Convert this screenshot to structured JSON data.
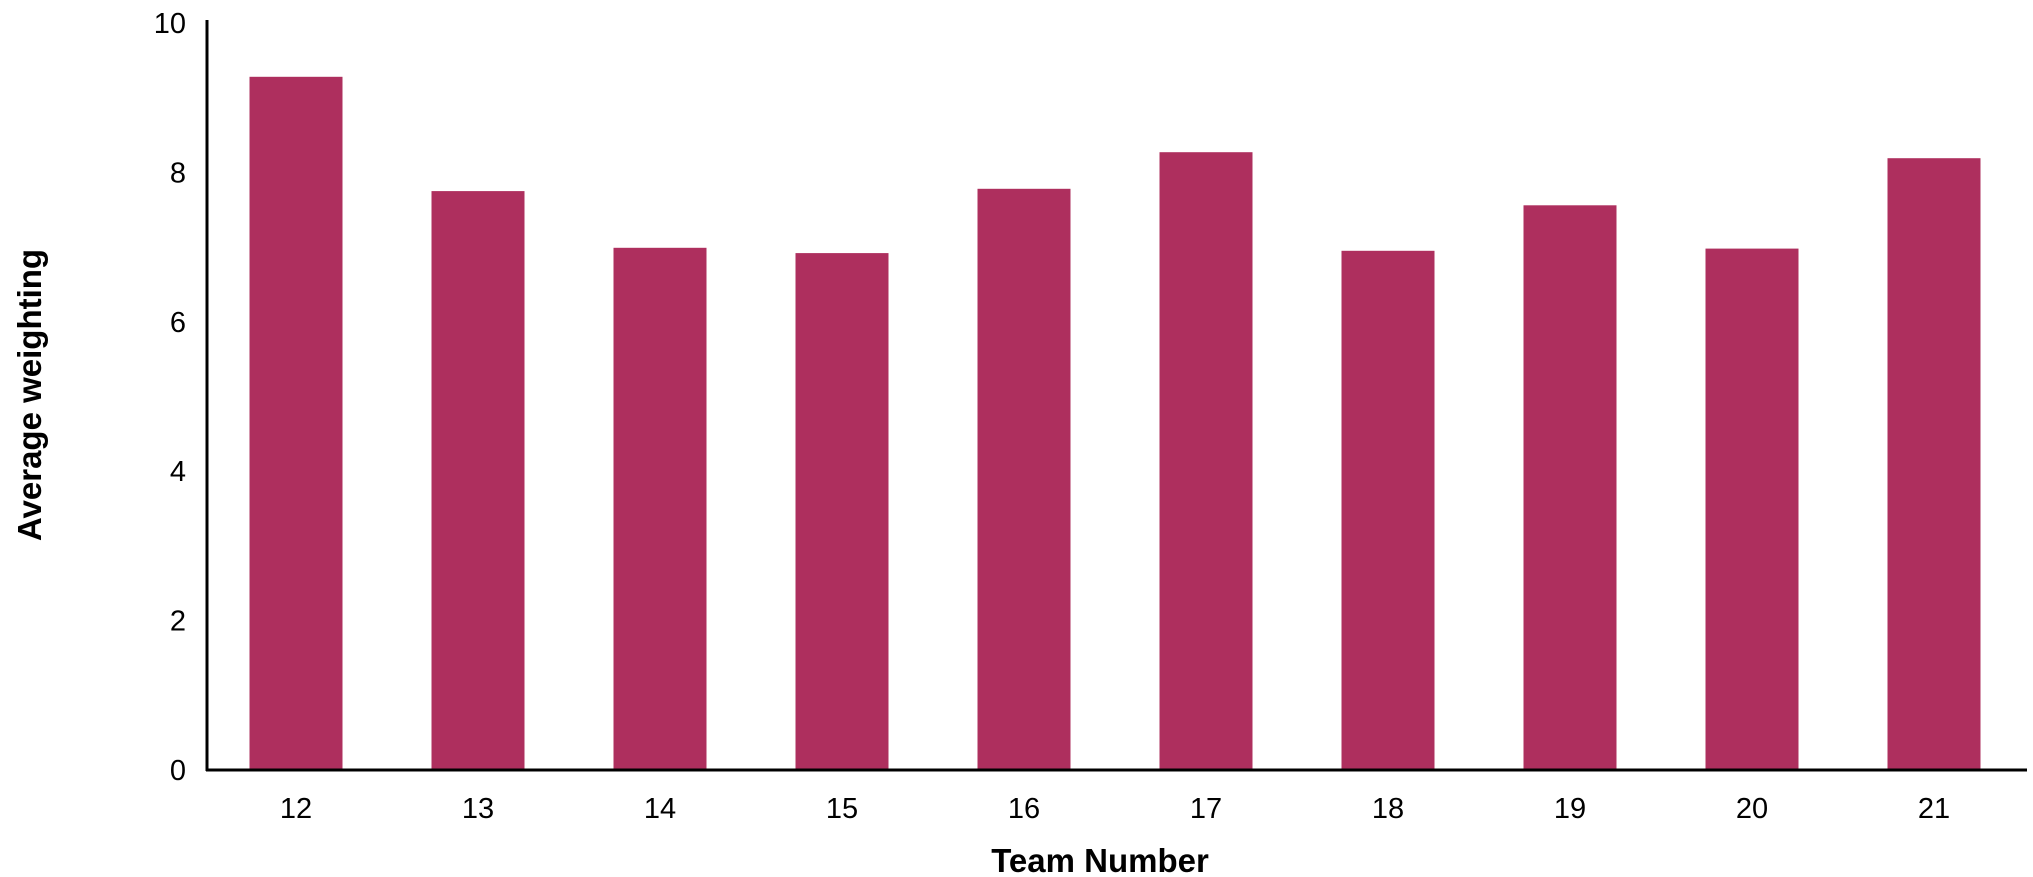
{
  "chart_data": {
    "type": "bar",
    "title": "",
    "xlabel": "Team Number",
    "ylabel": "Average weighting",
    "categories": [
      "12",
      "13",
      "14",
      "15",
      "16",
      "17",
      "18",
      "19",
      "20",
      "21"
    ],
    "values": [
      9.28,
      7.75,
      6.99,
      6.92,
      7.78,
      8.27,
      6.95,
      7.56,
      6.98,
      8.19
    ],
    "ylim": [
      0,
      10
    ],
    "yticks": [
      "0",
      "2",
      "4",
      "6",
      "8",
      "10"
    ],
    "grid": false,
    "legend": "none",
    "bar_color": "#ae2f5e",
    "axis_color": "#000000"
  }
}
